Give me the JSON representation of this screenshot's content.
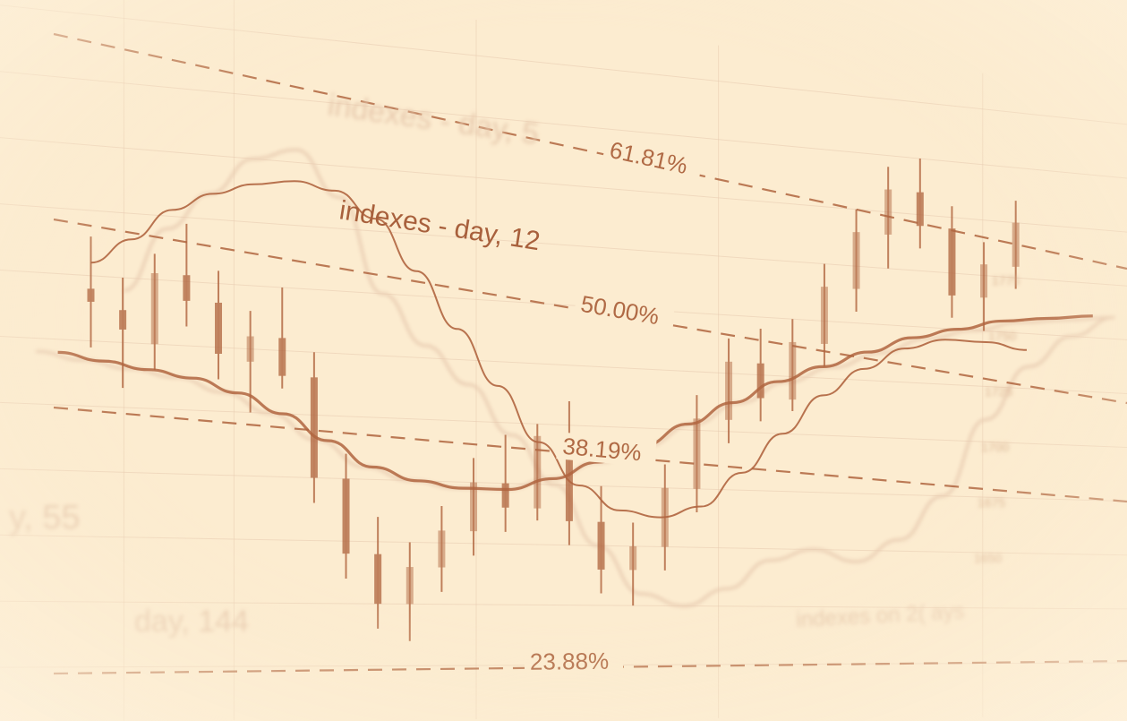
{
  "chart_data": {
    "type": "line",
    "title": "",
    "xlabel": "",
    "ylabel": "",
    "grid": true,
    "colors": {
      "background": "#fcecd0",
      "ink": "#b0653f",
      "faint": "#e8cbb0"
    },
    "fib_levels": [
      {
        "label": "61.81%",
        "value": 61.81
      },
      {
        "label": "50.00%",
        "value": 50.0
      },
      {
        "label": "38.19%",
        "value": 38.19
      },
      {
        "label": "23.88%",
        "value": 23.88
      }
    ],
    "series_labels": {
      "main": "indexes - day, 12",
      "ghost_top": "indexes - day, 5",
      "ghost_left": "y, 55",
      "ghost_bottom": "day, 144",
      "ghost_right": "indexes on 2( ays"
    },
    "right_scale": [
      "1775",
      "1750",
      "1725",
      "1700",
      "1675",
      "1650"
    ],
    "series": [
      {
        "name": "indexes - day, 12",
        "values": [
          62,
          66,
          71,
          74,
          76,
          77,
          76,
          72,
          64,
          55,
          46,
          37,
          30,
          26,
          25,
          27,
          33,
          40,
          47,
          52,
          56,
          58,
          58,
          57
        ]
      },
      {
        "name": "indexes - day, 5",
        "values": [
          58,
          68,
          74,
          80,
          82,
          75,
          60,
          52,
          46,
          38,
          30,
          20,
          12,
          10,
          13,
          18,
          20,
          18,
          22,
          30,
          44,
          54,
          60,
          64
        ]
      },
      {
        "name": "indexes on 2( ays",
        "values": [
          48,
          47,
          46,
          45,
          43,
          40,
          36,
          32,
          30,
          29,
          29,
          31,
          34,
          37,
          41,
          45,
          49,
          52,
          55,
          58,
          60,
          62,
          63,
          64
        ]
      }
    ],
    "candles": [
      [
        58,
        66,
        49,
        56
      ],
      [
        55,
        60,
        43,
        52
      ],
      [
        50,
        64,
        46,
        61
      ],
      [
        61,
        69,
        53,
        57
      ],
      [
        57,
        62,
        45,
        49
      ],
      [
        48,
        56,
        40,
        52
      ],
      [
        52,
        60,
        44,
        46
      ],
      [
        46,
        50,
        26,
        30
      ],
      [
        30,
        34,
        14,
        18
      ],
      [
        18,
        24,
        6,
        10
      ],
      [
        10,
        20,
        4,
        16
      ],
      [
        16,
        26,
        12,
        22
      ],
      [
        22,
        34,
        18,
        30
      ],
      [
        30,
        38,
        22,
        26
      ],
      [
        26,
        40,
        24,
        38
      ],
      [
        38,
        44,
        20,
        24
      ],
      [
        24,
        30,
        12,
        16
      ],
      [
        16,
        24,
        10,
        20
      ],
      [
        20,
        34,
        16,
        30
      ],
      [
        30,
        46,
        26,
        42
      ],
      [
        42,
        56,
        38,
        52
      ],
      [
        52,
        58,
        42,
        46
      ],
      [
        46,
        60,
        44,
        56
      ],
      [
        56,
        70,
        52,
        66
      ],
      [
        66,
        80,
        62,
        76
      ],
      [
        76,
        88,
        70,
        84
      ],
      [
        84,
        90,
        74,
        78
      ],
      [
        78,
        82,
        62,
        66
      ],
      [
        66,
        76,
        60,
        72
      ],
      [
        72,
        84,
        68,
        80
      ]
    ]
  }
}
